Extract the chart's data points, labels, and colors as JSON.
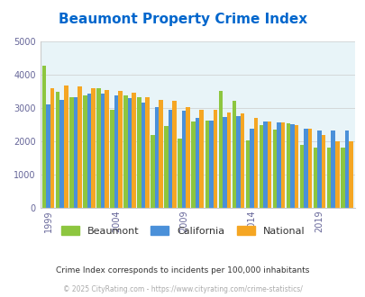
{
  "title": "Beaumont Property Crime Index",
  "title_color": "#0066cc",
  "background_color": "#e8f4f8",
  "fig_background": "#ffffff",
  "years": [
    1999,
    2000,
    2001,
    2002,
    2003,
    2004,
    2005,
    2006,
    2007,
    2008,
    2009,
    2010,
    2011,
    2012,
    2013,
    2014,
    2015,
    2016,
    2017,
    2018,
    2019,
    2020,
    2021
  ],
  "beaumont": [
    4270,
    3490,
    3340,
    3370,
    3600,
    2960,
    3390,
    3330,
    2190,
    2450,
    2090,
    2600,
    2620,
    3530,
    3210,
    2030,
    2500,
    2350,
    2530,
    1900,
    1820,
    1820,
    1820
  ],
  "california": [
    3100,
    3260,
    3330,
    3430,
    3430,
    3380,
    3290,
    3170,
    3030,
    2940,
    2920,
    2710,
    2620,
    2730,
    2750,
    2390,
    2600,
    2580,
    2520,
    2380,
    2340,
    2340,
    2320
  ],
  "national": [
    3590,
    3680,
    3640,
    3610,
    3540,
    3510,
    3450,
    3340,
    3260,
    3210,
    3040,
    2950,
    2940,
    2870,
    2850,
    2700,
    2610,
    2580,
    2490,
    2370,
    2190,
    1990,
    1990
  ],
  "beaumont_color": "#8dc63f",
  "california_color": "#4a90d9",
  "national_color": "#f5a623",
  "ylim": [
    0,
    5000
  ],
  "yticks": [
    0,
    1000,
    2000,
    3000,
    4000,
    5000
  ],
  "xlabel_ticks": [
    1999,
    2004,
    2009,
    2014,
    2019
  ],
  "footnote1": "Crime Index corresponds to incidents per 100,000 inhabitants",
  "footnote2": "© 2025 CityRating.com - https://www.cityrating.com/crime-statistics/",
  "footnote1_color": "#333333",
  "footnote2_color": "#aaaaaa",
  "grid_color": "#cccccc",
  "axis_label_color": "#666699"
}
